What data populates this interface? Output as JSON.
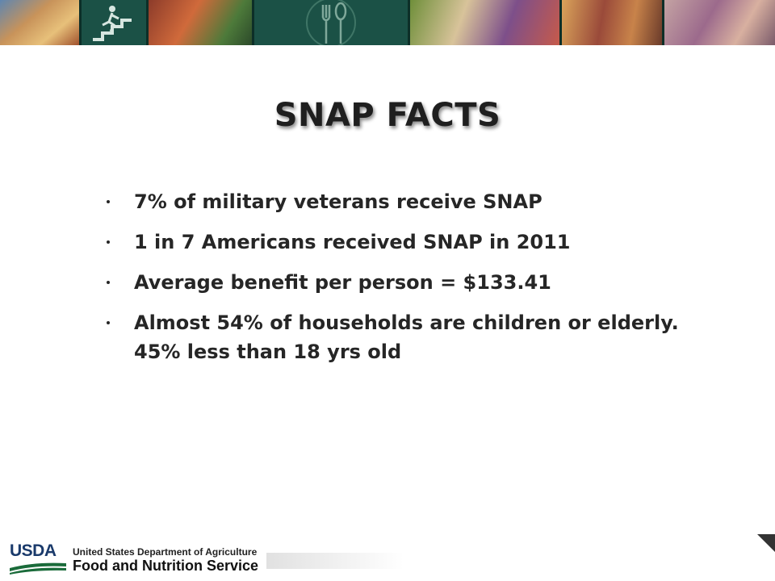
{
  "slide": {
    "title": "SNAP FACTS",
    "bullets": [
      "7% of military veterans receive SNAP",
      "1 in 7 Americans received SNAP in 2011",
      "Average benefit per person = $133.41",
      "Almost 54% of households are children or elderly.  45% less than 18 yrs old"
    ]
  },
  "banner": {
    "tiles": [
      {
        "kind": "photo",
        "subject": "people playing basketball"
      },
      {
        "kind": "icon",
        "icon": "person-climbing-stairs-icon"
      },
      {
        "kind": "photo",
        "subject": "children cheering"
      },
      {
        "kind": "icon",
        "icon": "fork-and-spoon-icon"
      },
      {
        "kind": "photo",
        "subject": "family eating at table"
      },
      {
        "kind": "photo",
        "subject": "child at school lunch"
      },
      {
        "kind": "photo",
        "subject": "woman and girl at computer"
      }
    ],
    "background_color": "#123f36"
  },
  "footer": {
    "logo_text": "USDA",
    "department": "United States Department of Agriculture",
    "agency": "Food and Nutrition Service",
    "logo_color": "#1a3a6b"
  }
}
